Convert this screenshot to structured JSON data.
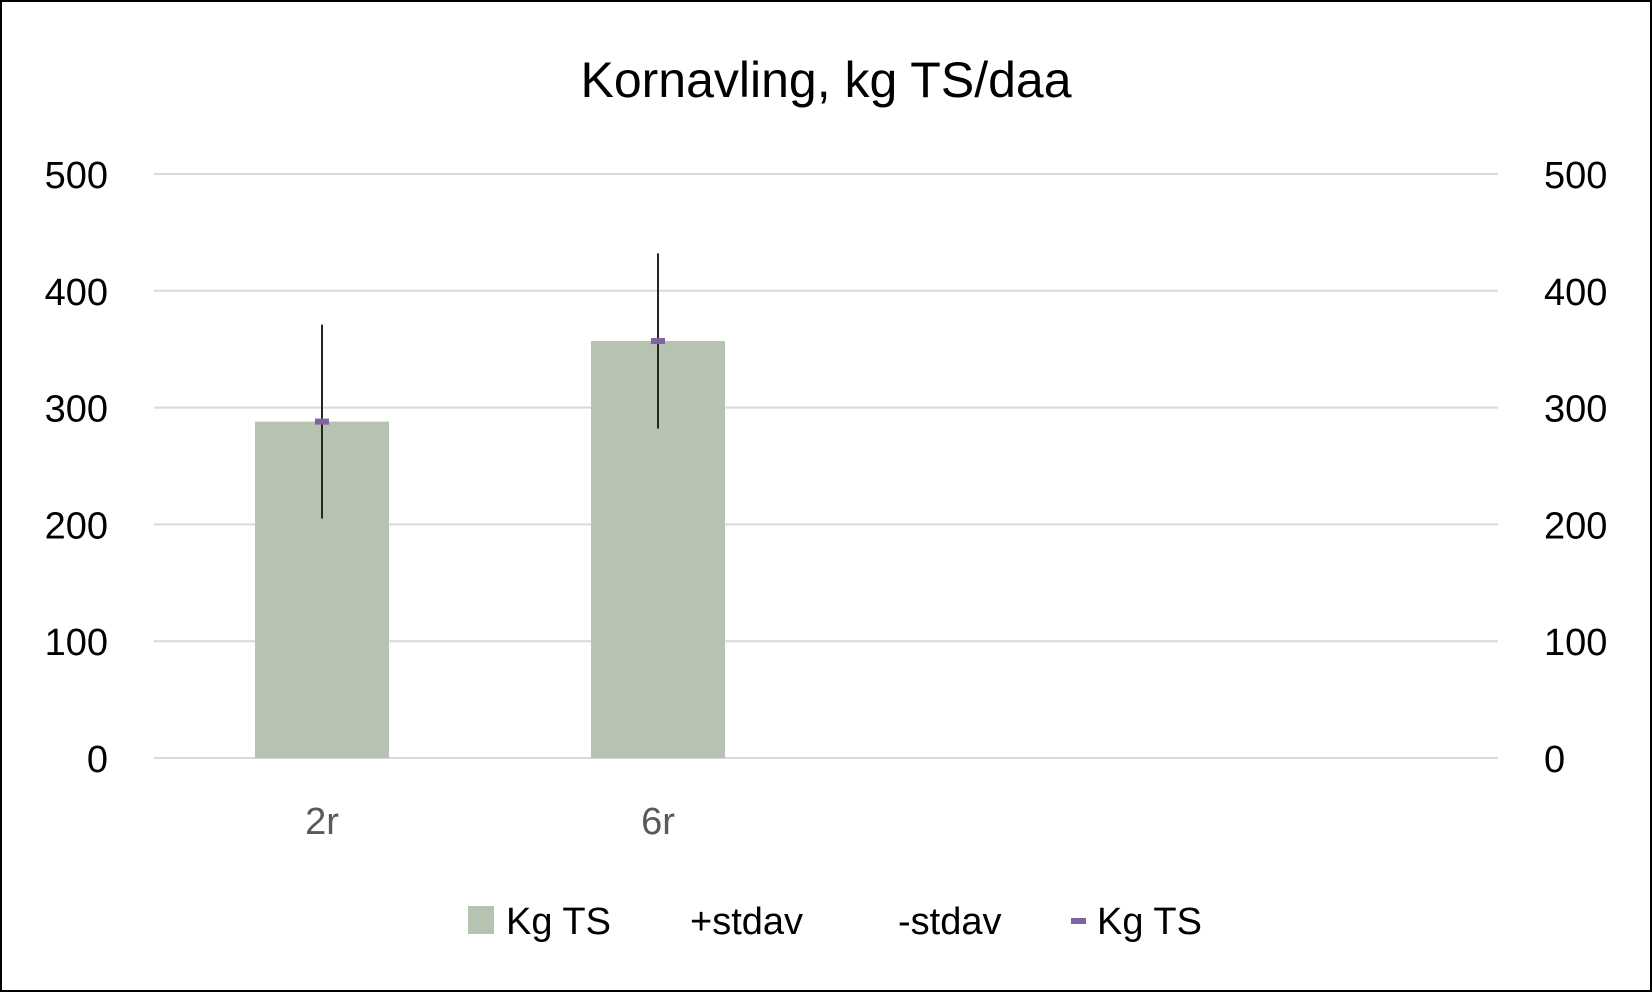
{
  "chart_data": {
    "type": "bar",
    "title": "Kornavling, kg TS/daa",
    "categories": [
      "2r",
      "6r"
    ],
    "series": [
      {
        "name": "Kg TS",
        "kind": "bar",
        "values": [
          288,
          357
        ]
      },
      {
        "name": "+stdav",
        "kind": "error-plus",
        "values": [
          371,
          432
        ]
      },
      {
        "name": "-stdav",
        "kind": "error-minus",
        "values": [
          205,
          282
        ]
      },
      {
        "name": "Kg TS",
        "kind": "marker",
        "values": [
          288,
          357
        ]
      }
    ],
    "ylim": [
      0,
      500
    ],
    "yticks": [
      "0",
      "100",
      "200",
      "300",
      "400",
      "500"
    ],
    "y2ticks": [
      "0",
      "100",
      "200",
      "300",
      "400",
      "500"
    ],
    "xlabel": "",
    "ylabel": "",
    "grid": true,
    "legend_position": "bottom",
    "colors": {
      "bar": "#b6c3b0",
      "marker": "#8064a2",
      "error": "#262626",
      "grid": "#d9d9d9",
      "border": "#000000"
    }
  }
}
